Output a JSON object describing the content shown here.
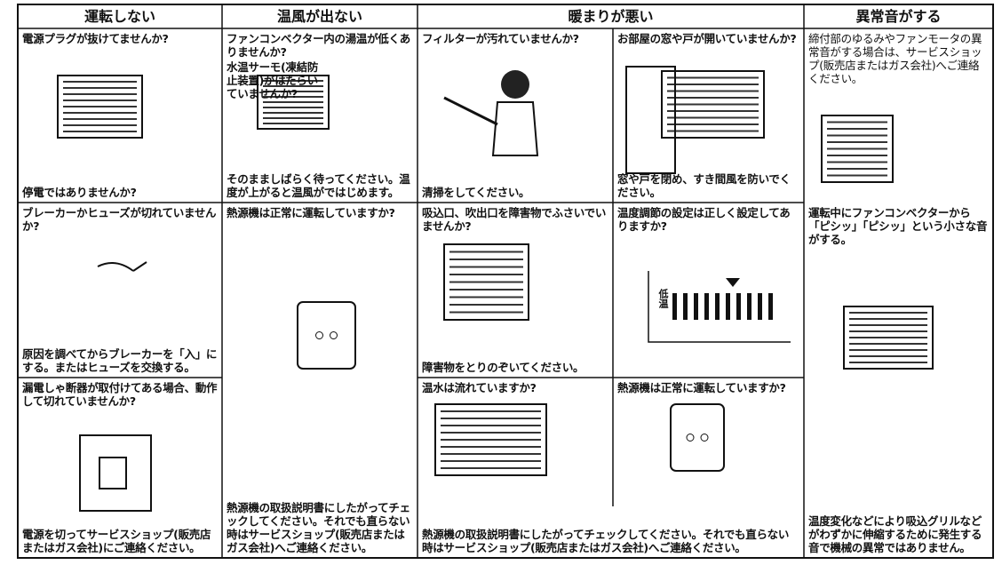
{
  "header": [
    "運転しない",
    "温風が出ない",
    "暖まりが悪い",
    "異常音がする"
  ],
  "cells": [
    {
      "question": "電源プラグが抜けてませんか?",
      "answer": "停電ではありませんか?"
    },
    {
      "question": "ファンコンベクター内の湯温が低くありませんか?",
      "note": "水温サーモ(凍結防止装置)がはたらいていませんか?",
      "answer": "そのまましばらく待ってください。温度が上がると温風がではじめます。"
    },
    {
      "question": "フィルターが汚れていませんか?",
      "answer": "清掃をしてください。"
    },
    {
      "question": "お部屋の窓や戸が開いていませんか?",
      "answer": "窓や戸を閉め、すき間風を防いでください。"
    },
    {
      "question": "締付部のゆるみやファンモータの異常音がする場合は、サービスショップ(販売店またはガス会社)へご連絡ください。"
    },
    {
      "question": "ブレーカーかヒューズが切れていませんか?",
      "answer": "原因を調べてからブレーカーを「入」にする。またはヒューズを交換する。"
    },
    {
      "question": "熱源機は正常に運転していますか?",
      "answer": "熱源機の取扱説明書にしたがってチェックしてください。それでも直らない時はサービスショップ(販売店またはガス会社)へご連絡ください。"
    },
    {
      "question": "吸込口、吹出口を障害物でふさいでいませんか?",
      "answer": "障害物をとりのぞいてください。"
    },
    {
      "question": "温度調節の設定は正しく設定してありますか?",
      "label": "低温"
    },
    {
      "question": "運転中にファンコンベクターから「ピシッ」「ピシッ」という小さな音がする。",
      "answer": "温度変化などにより吸込グリルなどがわずかに伸縮するために発生する音で機械の異常ではありません。"
    },
    {
      "question": "漏電しゃ断器が取付けてある場合、動作して切れていませんか?",
      "answer": "電源を切ってサービスショップ(販売店またはガス会社)にご連絡ください。"
    },
    {
      "question": "温水は流れていますか?"
    },
    {
      "question": "熱源機は正常に運転していますか?"
    },
    {
      "answer": "熱源機の取扱説明書にしたがってチェックしてください。それでも直らない時はサービスショップ(販売店またはガス会社)へご連絡ください。"
    }
  ]
}
